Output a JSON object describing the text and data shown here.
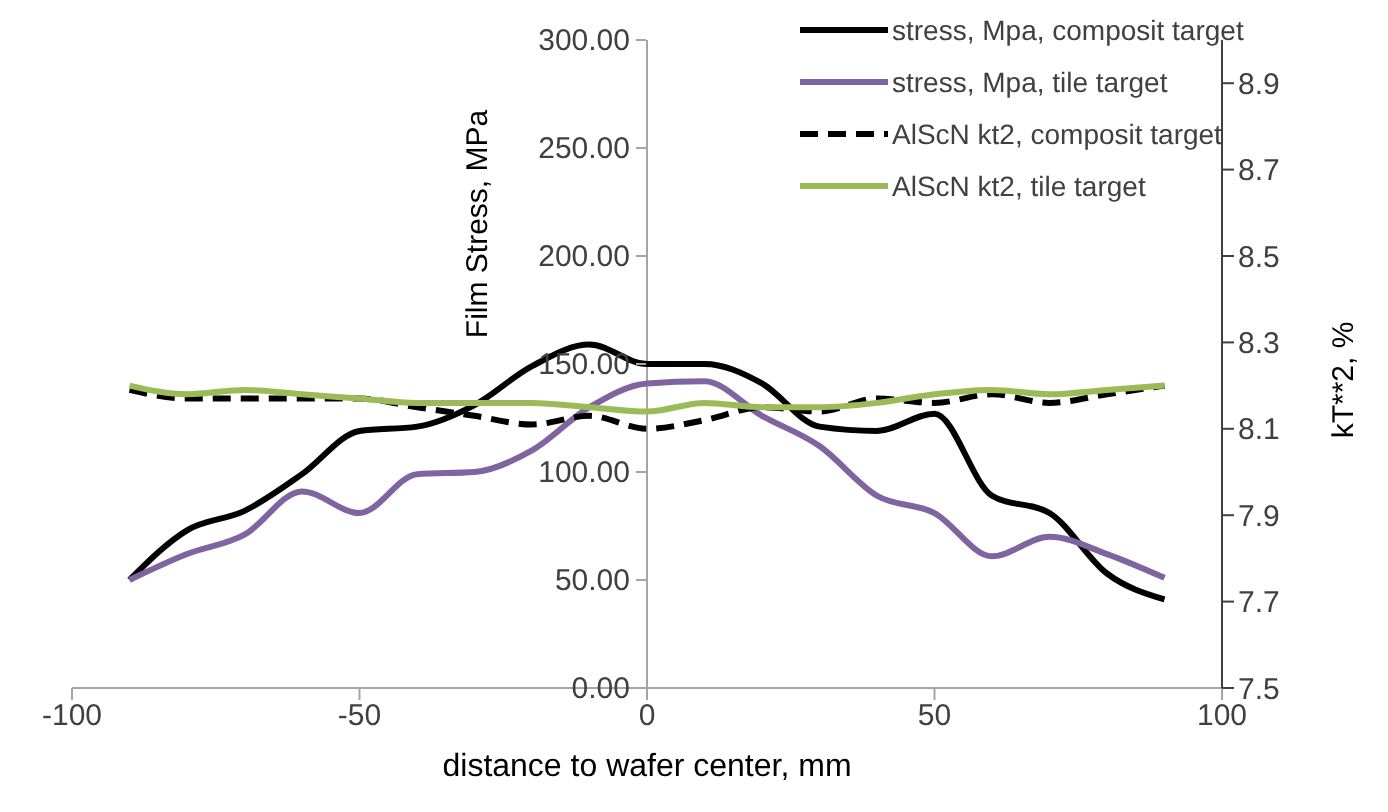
{
  "chart_data": {
    "type": "line",
    "xlabel": "distance to wafer center, mm",
    "ylabel": "Film Stress, MPa",
    "y2label": "kT**2, %",
    "x": [
      -90,
      -80,
      -70,
      -60,
      -50,
      -40,
      -30,
      -20,
      -10,
      0,
      10,
      20,
      30,
      40,
      50,
      60,
      70,
      80,
      90
    ],
    "series": [
      {
        "name": "stress, Mpa, composit target",
        "color": "#000000",
        "line_style": "solid",
        "values": [
          50,
          73,
          82,
          99,
          119,
          121,
          131,
          149,
          159,
          150,
          150,
          141,
          121,
          119,
          127,
          89,
          81,
          53,
          41
        ]
      },
      {
        "name": "stress, Mpa, tile target",
        "color": "#8064a2",
        "line_style": "solid",
        "values": [
          50,
          62,
          71,
          91,
          81,
          99,
          100,
          110,
          130,
          141,
          142,
          126,
          112,
          89,
          81,
          61,
          70,
          62,
          51
        ]
      },
      {
        "name": "AlScN kt2, composit target",
        "color": "#000000",
        "line_style": "dashed",
        "axis": "y2",
        "values": [
          8.19,
          8.17,
          8.17,
          8.17,
          8.17,
          8.15,
          8.13,
          8.11,
          8.13,
          8.1,
          8.12,
          8.15,
          8.14,
          8.17,
          8.16,
          8.18,
          8.16,
          8.18,
          8.2
        ]
      },
      {
        "name": "AlScN kt2, tile target",
        "color": "#9bbb59",
        "line_style": "solid",
        "axis": "y2",
        "values": [
          8.2,
          8.18,
          8.19,
          8.18,
          8.17,
          8.16,
          8.16,
          8.16,
          8.15,
          8.14,
          8.16,
          8.15,
          8.15,
          8.16,
          8.18,
          8.19,
          8.18,
          8.19,
          8.2
        ]
      }
    ],
    "xlim": [
      -100,
      100
    ],
    "xticks": [
      -100,
      -50,
      0,
      50,
      100
    ],
    "ylim": [
      0,
      300
    ],
    "yticks": [
      {
        "value": 0,
        "label": "0.00"
      },
      {
        "value": 50,
        "label": "50.00"
      },
      {
        "value": 100,
        "label": "100.00"
      },
      {
        "value": 150,
        "label": "150.00"
      },
      {
        "value": 200,
        "label": "200.00"
      },
      {
        "value": 250,
        "label": "250.00"
      },
      {
        "value": 300,
        "label": "300.00"
      }
    ],
    "y2lim": [
      7.5,
      9.0
    ],
    "y2ticks": [
      7.5,
      7.7,
      7.9,
      8.1,
      8.3,
      8.5,
      8.7,
      8.9
    ],
    "grid": false,
    "legend": "top right",
    "marker": "none"
  }
}
